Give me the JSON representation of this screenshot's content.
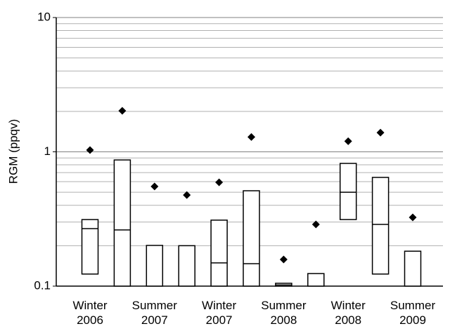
{
  "chart_data": {
    "type": "box",
    "y_label": "RGM (ppqv)",
    "categories": [
      "Winter 2006",
      null,
      "Summer 2007",
      null,
      "Winter 2007",
      null,
      "Summer 2008",
      null,
      "Winter 2008",
      null,
      "Summer 2009"
    ],
    "low": [
      0.123,
      0.1,
      0.1,
      0.1,
      0.1,
      0.1,
      0.1,
      0.1,
      0.313,
      0.123,
      0.1
    ],
    "median": [
      0.268,
      0.262,
      null,
      null,
      0.149,
      0.147,
      0.102,
      null,
      0.5,
      0.288,
      null
    ],
    "high": [
      0.313,
      0.87,
      0.201,
      0.2,
      0.31,
      0.513,
      0.105,
      0.124,
      0.82,
      0.645,
      0.182
    ],
    "max": [
      1.03,
      2.02,
      0.552,
      0.477,
      0.593,
      1.29,
      0.158,
      0.288,
      1.2,
      1.39,
      0.325
    ],
    "log_scale": true,
    "ylim": [
      0.1,
      10
    ],
    "yticks": [
      0.1,
      1,
      10
    ],
    "yticks_minor": [
      0.2,
      0.3,
      0.4,
      0.5,
      0.6,
      0.7,
      0.8,
      0.9,
      2,
      3,
      4,
      5,
      6,
      7,
      8,
      9
    ],
    "grid": true,
    "box_color": "#000000",
    "marker_color": "#000000"
  }
}
